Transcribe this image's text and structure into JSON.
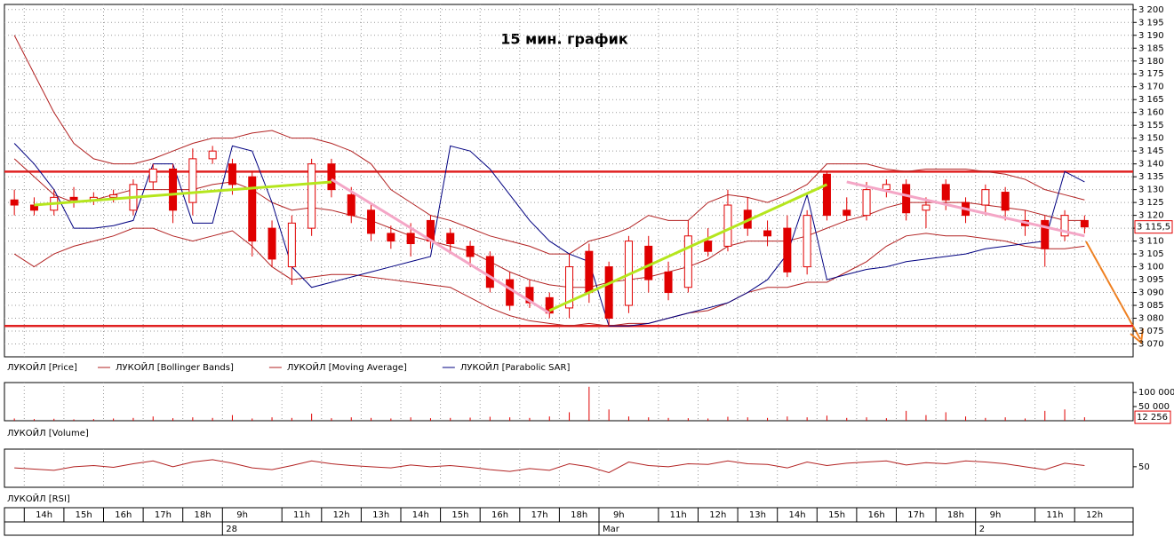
{
  "chart_data": [
    {
      "type": "candlestick",
      "title": "15 мин. график",
      "categories": [
        null,
        "14h",
        null,
        "15h",
        null,
        "16h",
        null,
        "17h",
        null,
        "18h",
        null,
        "9h",
        null,
        null,
        "11h",
        null,
        "12h",
        null,
        "13h",
        null,
        "14h",
        null,
        "15h",
        null,
        "16h",
        null,
        "17h",
        null,
        "18h",
        null,
        "9h",
        null,
        null,
        "11h",
        null,
        "12h",
        null,
        "13h",
        null,
        "14h",
        null,
        "15h",
        null,
        "16h",
        null,
        "17h",
        null,
        "18h",
        null,
        "9h",
        null,
        null,
        "11h",
        null,
        "12h"
      ],
      "dates": [
        null,
        null,
        null,
        null,
        null,
        null,
        null,
        null,
        null,
        null,
        null,
        "28",
        null,
        null,
        null,
        null,
        null,
        null,
        null,
        null,
        null,
        null,
        null,
        null,
        null,
        null,
        null,
        null,
        null,
        null,
        "Mar",
        null,
        null,
        null,
        null,
        null,
        null,
        null,
        null,
        null,
        null,
        null,
        null,
        null,
        null,
        null,
        null,
        null,
        null,
        "2",
        null,
        null,
        null,
        null,
        null
      ],
      "open": [
        3126,
        3124,
        3122,
        3127,
        3126,
        3127,
        3122,
        3133,
        3138,
        3125,
        3142,
        3140,
        3135,
        3115,
        3100,
        3115,
        3140,
        3128,
        3122,
        3113,
        3113,
        3118,
        3113,
        3108,
        3104,
        3095,
        3092,
        3088,
        3084,
        3106,
        3100,
        3085,
        3108,
        3098,
        3092,
        3110,
        3108,
        3122,
        3114,
        3115,
        3100,
        3136,
        3122,
        3120,
        3130,
        3132,
        3122,
        3132,
        3125,
        3124,
        3129,
        3118,
        3118,
        3112,
        3118
      ],
      "high": [
        3130,
        3127,
        3130,
        3131,
        3129,
        3130,
        3134,
        3140,
        3140,
        3146,
        3147,
        3142,
        3137,
        3118,
        3120,
        3142,
        3142,
        3131,
        3125,
        3116,
        3117,
        3120,
        3115,
        3110,
        3106,
        3098,
        3095,
        3090,
        3105,
        3109,
        3102,
        3112,
        3112,
        3102,
        3118,
        3115,
        3130,
        3127,
        3118,
        3120,
        3122,
        3137,
        3127,
        3133,
        3134,
        3134,
        3127,
        3134,
        3127,
        3132,
        3131,
        3122,
        3120,
        3122,
        3120
      ],
      "low": [
        3120,
        3120,
        3120,
        3123,
        3124,
        3125,
        3120,
        3130,
        3117,
        3120,
        3140,
        3128,
        3104,
        3100,
        3093,
        3112,
        3127,
        3117,
        3110,
        3107,
        3104,
        3107,
        3105,
        3100,
        3090,
        3083,
        3084,
        3080,
        3080,
        3086,
        3077,
        3082,
        3090,
        3087,
        3090,
        3104,
        3106,
        3112,
        3108,
        3096,
        3097,
        3118,
        3118,
        3118,
        3127,
        3118,
        3115,
        3122,
        3117,
        3120,
        3118,
        3112,
        3100,
        3110,
        3113
      ],
      "close": [
        3124,
        3122,
        3127,
        3126,
        3127,
        3128,
        3132,
        3138,
        3122,
        3142,
        3145,
        3132,
        3110,
        3103,
        3117,
        3140,
        3130,
        3120,
        3113,
        3110,
        3109,
        3110,
        3109,
        3104,
        3092,
        3085,
        3086,
        3082,
        3100,
        3090,
        3080,
        3110,
        3095,
        3090,
        3112,
        3106,
        3124,
        3115,
        3112,
        3098,
        3120,
        3120,
        3120,
        3130,
        3132,
        3121,
        3124,
        3126,
        3120,
        3130,
        3122,
        3116,
        3107,
        3120,
        3115.5
      ],
      "last_label": "3 115,5",
      "series": [
        {
          "name": "ЛУКОЙЛ [Bollinger Bands]",
          "color": "#b22222",
          "values": [
            3190,
            3175,
            3160,
            3148,
            3142,
            3140,
            3140,
            3142,
            3145,
            3148,
            3150,
            3150,
            3152,
            3153,
            3150,
            3150,
            3148,
            3145,
            3140,
            3130,
            3125,
            3120,
            3118,
            3115,
            3112,
            3110,
            3108,
            3105,
            3105,
            3110,
            3112,
            3115,
            3120,
            3118,
            3118,
            3125,
            3128,
            3127,
            3125,
            3128,
            3132,
            3140,
            3140,
            3140,
            3138,
            3137,
            3138,
            3138,
            3138,
            3137,
            3136,
            3134,
            3130,
            3128,
            3126
          ],
          "lower": [
            3105,
            3100,
            3105,
            3108,
            3110,
            3112,
            3115,
            3115,
            3112,
            3110,
            3112,
            3114,
            3108,
            3100,
            3095,
            3096,
            3097,
            3097,
            3096,
            3095,
            3094,
            3093,
            3092,
            3088,
            3084,
            3081,
            3079,
            3078,
            3077,
            3078,
            3077,
            3078,
            3078,
            3080,
            3082,
            3083,
            3086,
            3090,
            3092,
            3092,
            3094,
            3094,
            3098,
            3102,
            3108,
            3112,
            3113,
            3112,
            3112,
            3111,
            3110,
            3108,
            3107,
            3107,
            3108
          ]
        },
        {
          "name": "ЛУКОЙЛ [Moving Average]",
          "color": "#b22222",
          "values": [
            3142,
            3135,
            3128,
            3125,
            3126,
            3128,
            3130,
            3130,
            3130,
            3130,
            3132,
            3133,
            3130,
            3125,
            3122,
            3123,
            3122,
            3120,
            3118,
            3115,
            3112,
            3110,
            3108,
            3106,
            3102,
            3098,
            3095,
            3093,
            3092,
            3092,
            3094,
            3095,
            3096,
            3098,
            3100,
            3103,
            3108,
            3110,
            3110,
            3110,
            3112,
            3115,
            3118,
            3120,
            3123,
            3125,
            3125,
            3125,
            3125,
            3124,
            3123,
            3122,
            3120,
            3118,
            3118
          ]
        },
        {
          "name": "ЛУКОЙЛ [Parabolic SAR]",
          "color": "#000080",
          "values": [
            3148,
            3140,
            3130,
            3115,
            3115,
            3116,
            3118,
            3140,
            3140,
            3117,
            3117,
            3147,
            3145,
            3125,
            3100,
            3092,
            3094,
            3096,
            3098,
            3100,
            3102,
            3104,
            3147,
            3145,
            3138,
            3128,
            3118,
            3110,
            3105,
            3102,
            3077,
            3077,
            3078,
            3080,
            3082,
            3084,
            3086,
            3090,
            3095,
            3105,
            3128,
            3095,
            3097,
            3099,
            3100,
            3102,
            3103,
            3104,
            3105,
            3107,
            3108,
            3109,
            3110,
            3137,
            3133
          ]
        }
      ],
      "price_name": "ЛУКОЙЛ [Price]",
      "candle_color": "#e00000",
      "levels": [
        3137,
        3077
      ],
      "level_color": "#e02020",
      "trendlines": [
        {
          "color": "#b5e61d",
          "from": [
            1,
            3124
          ],
          "to": [
            16,
            3133
          ]
        },
        {
          "color": "#f4a6c6",
          "from": [
            16,
            3134
          ],
          "to": [
            27,
            3082
          ]
        },
        {
          "color": "#b5e61d",
          "from": [
            27,
            3083
          ],
          "to": [
            41,
            3132
          ]
        },
        {
          "color": "#f4a6c6",
          "from": [
            42,
            3133
          ],
          "to": [
            54,
            3112
          ]
        }
      ],
      "ylim": [
        3065,
        3202
      ],
      "yticks": [
        {
          "value": 3070,
          "label": "3 070"
        },
        {
          "value": 3075,
          "label": "3 075"
        },
        {
          "value": 3080,
          "label": "3 080"
        },
        {
          "value": 3085,
          "label": "3 085"
        },
        {
          "value": 3090,
          "label": "3 090"
        },
        {
          "value": 3095,
          "label": "3 095"
        },
        {
          "value": 3100,
          "label": "3 100"
        },
        {
          "value": 3105,
          "label": "3 105"
        },
        {
          "value": 3110,
          "label": "3 110"
        },
        {
          "value": 3115,
          "label": "3 115"
        },
        {
          "value": 3120,
          "label": "3 120"
        },
        {
          "value": 3125,
          "label": "3 125"
        },
        {
          "value": 3130,
          "label": "3 130"
        },
        {
          "value": 3135,
          "label": "3 135"
        },
        {
          "value": 3140,
          "label": "3 140"
        },
        {
          "value": 3145,
          "label": "3 145"
        },
        {
          "value": 3150,
          "label": "3 150"
        },
        {
          "value": 3155,
          "label": "3 155"
        },
        {
          "value": 3160,
          "label": "3 160"
        },
        {
          "value": 3165,
          "label": "3 165"
        },
        {
          "value": 3170,
          "label": "3 170"
        },
        {
          "value": 3175,
          "label": "3 175"
        },
        {
          "value": 3180,
          "label": "3 180"
        },
        {
          "value": 3185,
          "label": "3 185"
        },
        {
          "value": 3190,
          "label": "3 190"
        },
        {
          "value": 3195,
          "label": "3 195"
        },
        {
          "value": 3200,
          "label": "3 200"
        }
      ],
      "grid": true
    },
    {
      "type": "volume",
      "name": "ЛУКОЙЛ [Volume]",
      "color": "#e00000",
      "values": [
        8000,
        6000,
        7000,
        5000,
        6000,
        8000,
        10000,
        15000,
        9000,
        12000,
        10000,
        20000,
        8000,
        12000,
        10000,
        25000,
        9000,
        12000,
        10000,
        8000,
        12000,
        9000,
        10000,
        11000,
        14000,
        12000,
        10000,
        15000,
        30000,
        120000,
        40000,
        15000,
        12000,
        10000,
        9000,
        8000,
        14000,
        12000,
        10000,
        15000,
        12000,
        18000,
        10000,
        12000,
        9000,
        35000,
        20000,
        30000,
        15000,
        10000,
        12000,
        8000,
        35000,
        40000,
        12256
      ],
      "last_label": "12 256",
      "ylim": [
        0,
        135000
      ],
      "yticks": [
        {
          "value": 50000,
          "label": "50 000"
        },
        {
          "value": 100000,
          "label": "100 000"
        }
      ]
    },
    {
      "type": "rsi",
      "name": "ЛУКОЙЛ [RSI]",
      "color": "#b22222",
      "values": [
        48,
        46,
        44,
        50,
        52,
        49,
        55,
        60,
        50,
        58,
        62,
        56,
        48,
        45,
        52,
        60,
        55,
        52,
        50,
        48,
        53,
        50,
        52,
        49,
        45,
        42,
        47,
        44,
        55,
        50,
        40,
        58,
        52,
        50,
        55,
        54,
        60,
        55,
        54,
        48,
        58,
        52,
        56,
        58,
        60,
        53,
        57,
        55,
        60,
        58,
        55,
        50,
        45,
        56,
        52
      ],
      "ylim": [
        15,
        80
      ],
      "yticks": [
        50
      ]
    }
  ]
}
